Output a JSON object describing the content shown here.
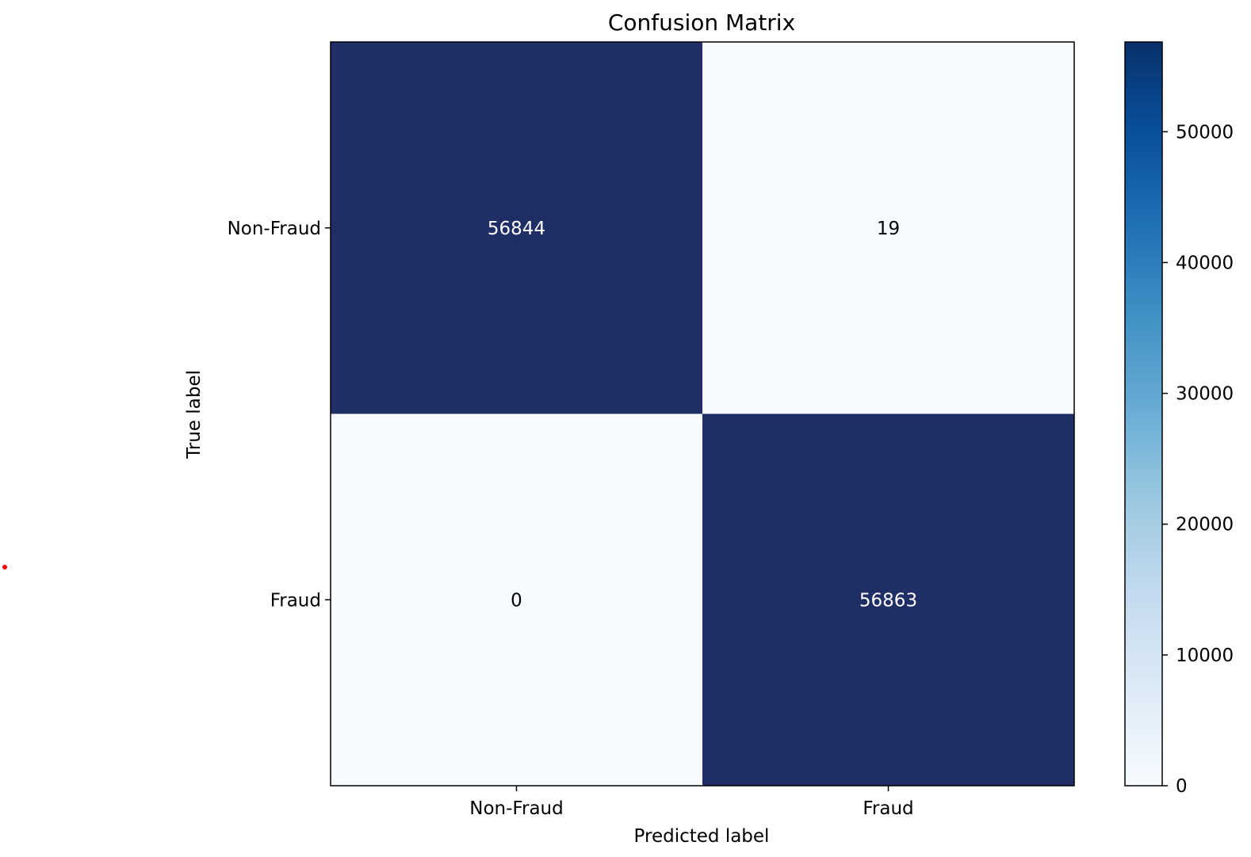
{
  "chart_data": {
    "type": "heatmap",
    "title": "Confusion Matrix",
    "xlabel": "Predicted label",
    "ylabel": "True label",
    "x_categories": [
      "Non-Fraud",
      "Fraud"
    ],
    "y_categories": [
      "Non-Fraud",
      "Fraud"
    ],
    "values": [
      [
        56844,
        19
      ],
      [
        0,
        56863
      ]
    ],
    "colormap": "Blues",
    "colorbar": {
      "min": 0,
      "max": 56863,
      "ticks": [
        0,
        10000,
        20000,
        30000,
        40000,
        50000
      ]
    },
    "grid": false,
    "colors": {
      "low": "#f7fbff",
      "high": "#08306b",
      "text_light": "#ffffff",
      "text_dark": "#000000"
    }
  },
  "marker": {
    "color": "#ff0000"
  }
}
